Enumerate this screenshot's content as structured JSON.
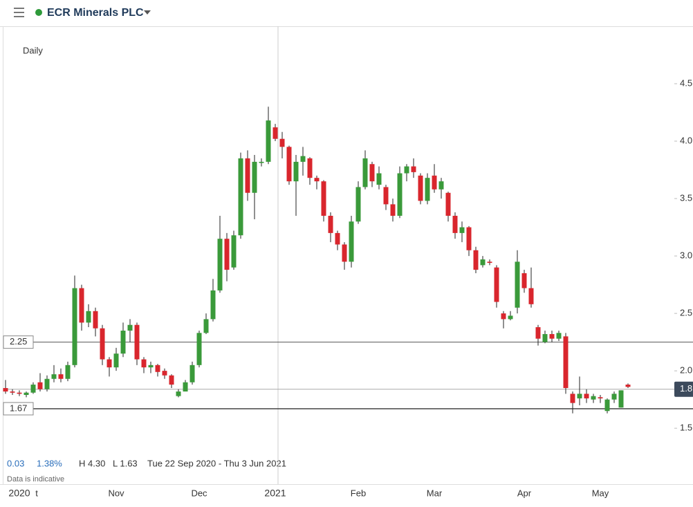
{
  "header": {
    "title": "ECR Minerals PLC"
  },
  "chart_data": {
    "type": "candlestick",
    "subtitle": "Daily",
    "categories": [
      null,
      null,
      "2020",
      null,
      null,
      "t",
      null,
      null,
      null,
      null,
      null,
      null,
      null,
      null,
      null,
      null,
      "Nov",
      null,
      null,
      null,
      null,
      null,
      null,
      null,
      null,
      null,
      null,
      null,
      "Dec",
      null,
      null,
      null,
      null,
      null,
      null,
      null,
      null,
      null,
      null,
      "2021",
      null,
      null,
      null,
      null,
      null,
      null,
      null,
      null,
      null,
      null,
      null,
      "Feb",
      null,
      null,
      null,
      null,
      null,
      null,
      null,
      null,
      null,
      null,
      "Mar",
      null,
      null,
      null,
      null,
      null,
      null,
      null,
      null,
      null,
      null,
      null,
      null,
      "Apr",
      null,
      null,
      null,
      null,
      null,
      null,
      null,
      null,
      null,
      null,
      "May",
      null,
      null,
      null,
      null
    ],
    "ohlc": [
      [
        1.85,
        1.92,
        1.8,
        1.82
      ],
      [
        1.82,
        1.84,
        1.79,
        1.81
      ],
      [
        1.81,
        1.83,
        1.78,
        1.8
      ],
      [
        1.79,
        1.82,
        1.77,
        1.81
      ],
      [
        1.81,
        1.9,
        1.8,
        1.88
      ],
      [
        1.9,
        1.98,
        1.82,
        1.84
      ],
      [
        1.84,
        1.96,
        1.82,
        1.93
      ],
      [
        1.93,
        2.05,
        1.9,
        1.97
      ],
      [
        1.97,
        2.02,
        1.9,
        1.93
      ],
      [
        1.93,
        2.08,
        1.91,
        2.05
      ],
      [
        2.05,
        2.83,
        2.03,
        2.72
      ],
      [
        2.72,
        2.75,
        2.35,
        2.42
      ],
      [
        2.42,
        2.58,
        2.38,
        2.52
      ],
      [
        2.52,
        2.55,
        2.3,
        2.37
      ],
      [
        2.37,
        2.4,
        2.05,
        2.1
      ],
      [
        2.1,
        2.12,
        1.95,
        2.03
      ],
      [
        2.03,
        2.2,
        2.0,
        2.15
      ],
      [
        2.15,
        2.42,
        2.12,
        2.35
      ],
      [
        2.35,
        2.45,
        2.25,
        2.4
      ],
      [
        2.4,
        2.42,
        2.05,
        2.1
      ],
      [
        2.1,
        2.12,
        1.98,
        2.03
      ],
      [
        2.03,
        2.08,
        1.98,
        2.05
      ],
      [
        2.05,
        2.06,
        1.95,
        1.99
      ],
      [
        2.0,
        2.02,
        1.93,
        1.96
      ],
      [
        1.96,
        1.97,
        1.85,
        1.88
      ],
      [
        1.78,
        1.84,
        1.77,
        1.82
      ],
      [
        1.82,
        1.92,
        1.82,
        1.9
      ],
      [
        1.9,
        2.08,
        1.88,
        2.05
      ],
      [
        2.05,
        2.35,
        2.03,
        2.33
      ],
      [
        2.33,
        2.5,
        2.32,
        2.45
      ],
      [
        2.45,
        2.8,
        2.43,
        2.7
      ],
      [
        2.7,
        3.35,
        2.68,
        3.15
      ],
      [
        3.15,
        3.2,
        2.78,
        2.88
      ],
      [
        2.9,
        3.22,
        2.88,
        3.18
      ],
      [
        3.18,
        3.9,
        3.15,
        3.85
      ],
      [
        3.85,
        3.92,
        3.48,
        3.55
      ],
      [
        3.55,
        3.88,
        3.32,
        3.82
      ],
      [
        3.81,
        3.85,
        3.78,
        3.82
      ],
      [
        3.82,
        4.3,
        3.8,
        4.18
      ],
      [
        4.12,
        4.15,
        4.0,
        4.02
      ],
      [
        4.02,
        4.08,
        3.85,
        3.95
      ],
      [
        3.95,
        3.96,
        3.62,
        3.65
      ],
      [
        3.65,
        3.88,
        3.35,
        3.82
      ],
      [
        3.82,
        3.95,
        3.7,
        3.87
      ],
      [
        3.85,
        3.86,
        3.62,
        3.68
      ],
      [
        3.68,
        3.7,
        3.58,
        3.65
      ],
      [
        3.65,
        3.66,
        3.3,
        3.35
      ],
      [
        3.35,
        3.38,
        3.12,
        3.2
      ],
      [
        3.2,
        3.22,
        3.05,
        3.1
      ],
      [
        3.1,
        3.12,
        2.88,
        2.95
      ],
      [
        2.95,
        3.35,
        2.9,
        3.3
      ],
      [
        3.3,
        3.65,
        3.28,
        3.6
      ],
      [
        3.6,
        3.92,
        3.58,
        3.85
      ],
      [
        3.8,
        3.82,
        3.6,
        3.65
      ],
      [
        3.62,
        3.78,
        3.58,
        3.72
      ],
      [
        3.6,
        3.62,
        3.4,
        3.45
      ],
      [
        3.45,
        3.5,
        3.3,
        3.35
      ],
      [
        3.35,
        3.78,
        3.33,
        3.72
      ],
      [
        3.72,
        3.8,
        3.65,
        3.78
      ],
      [
        3.78,
        3.85,
        3.68,
        3.73
      ],
      [
        3.7,
        3.72,
        3.45,
        3.48
      ],
      [
        3.48,
        3.72,
        3.45,
        3.68
      ],
      [
        3.7,
        3.8,
        3.55,
        3.58
      ],
      [
        3.58,
        3.68,
        3.5,
        3.65
      ],
      [
        3.55,
        3.56,
        3.3,
        3.35
      ],
      [
        3.35,
        3.38,
        3.15,
        3.2
      ],
      [
        3.2,
        3.3,
        3.12,
        3.25
      ],
      [
        3.25,
        3.26,
        3.0,
        3.05
      ],
      [
        3.05,
        3.08,
        2.85,
        2.88
      ],
      [
        2.92,
        3.0,
        2.9,
        2.97
      ],
      [
        2.95,
        2.97,
        2.92,
        2.94
      ],
      [
        2.9,
        2.92,
        2.55,
        2.6
      ],
      [
        2.5,
        2.52,
        2.37,
        2.45
      ],
      [
        2.45,
        2.52,
        2.44,
        2.48
      ],
      [
        2.55,
        3.05,
        2.5,
        2.95
      ],
      [
        2.85,
        2.88,
        2.68,
        2.72
      ],
      [
        2.72,
        2.9,
        2.55,
        2.58
      ],
      [
        2.38,
        2.4,
        2.22,
        2.28
      ],
      [
        2.25,
        2.35,
        2.24,
        2.32
      ],
      [
        2.32,
        2.35,
        2.25,
        2.28
      ],
      [
        2.28,
        2.35,
        2.26,
        2.33
      ],
      [
        2.3,
        2.33,
        1.8,
        1.85
      ],
      [
        1.8,
        1.82,
        1.63,
        1.72
      ],
      [
        1.76,
        1.95,
        1.7,
        1.8
      ],
      [
        1.8,
        1.84,
        1.72,
        1.76
      ],
      [
        1.75,
        1.8,
        1.72,
        1.78
      ],
      [
        1.77,
        1.79,
        1.72,
        1.76
      ],
      [
        1.65,
        1.76,
        1.63,
        1.75
      ],
      [
        1.75,
        1.82,
        1.72,
        1.8
      ],
      [
        1.68,
        1.83,
        1.68,
        1.83
      ],
      [
        1.88,
        1.89,
        1.85,
        1.86
      ]
    ],
    "up_color": "#3a9a3a",
    "down_color": "#d9262d",
    "ylim": [
      1.26,
      5.0
    ],
    "yticks": [
      {
        "value": 1.5,
        "label": "1.5"
      },
      {
        "value": 2,
        "label": "2.0"
      },
      {
        "value": 2.5,
        "label": "2.5"
      },
      {
        "value": 3,
        "label": "3.0"
      },
      {
        "value": 3.5,
        "label": "3.5"
      },
      {
        "value": 4,
        "label": "4.0"
      },
      {
        "value": 4.5,
        "label": "4.5"
      }
    ],
    "levels": [
      {
        "value": 2.25,
        "label": "2.25"
      },
      {
        "value": 1.67,
        "label": "1.67"
      }
    ],
    "last_price": {
      "value": 1.84,
      "label": "1.8"
    }
  },
  "info": {
    "change": "0.03",
    "change_pct": "1.38%",
    "high": "H 4.30",
    "low": "L 1.63",
    "range": "Tue 22 Sep 2020 - Thu 3 Jun 2021",
    "note": "Data is indicative"
  }
}
